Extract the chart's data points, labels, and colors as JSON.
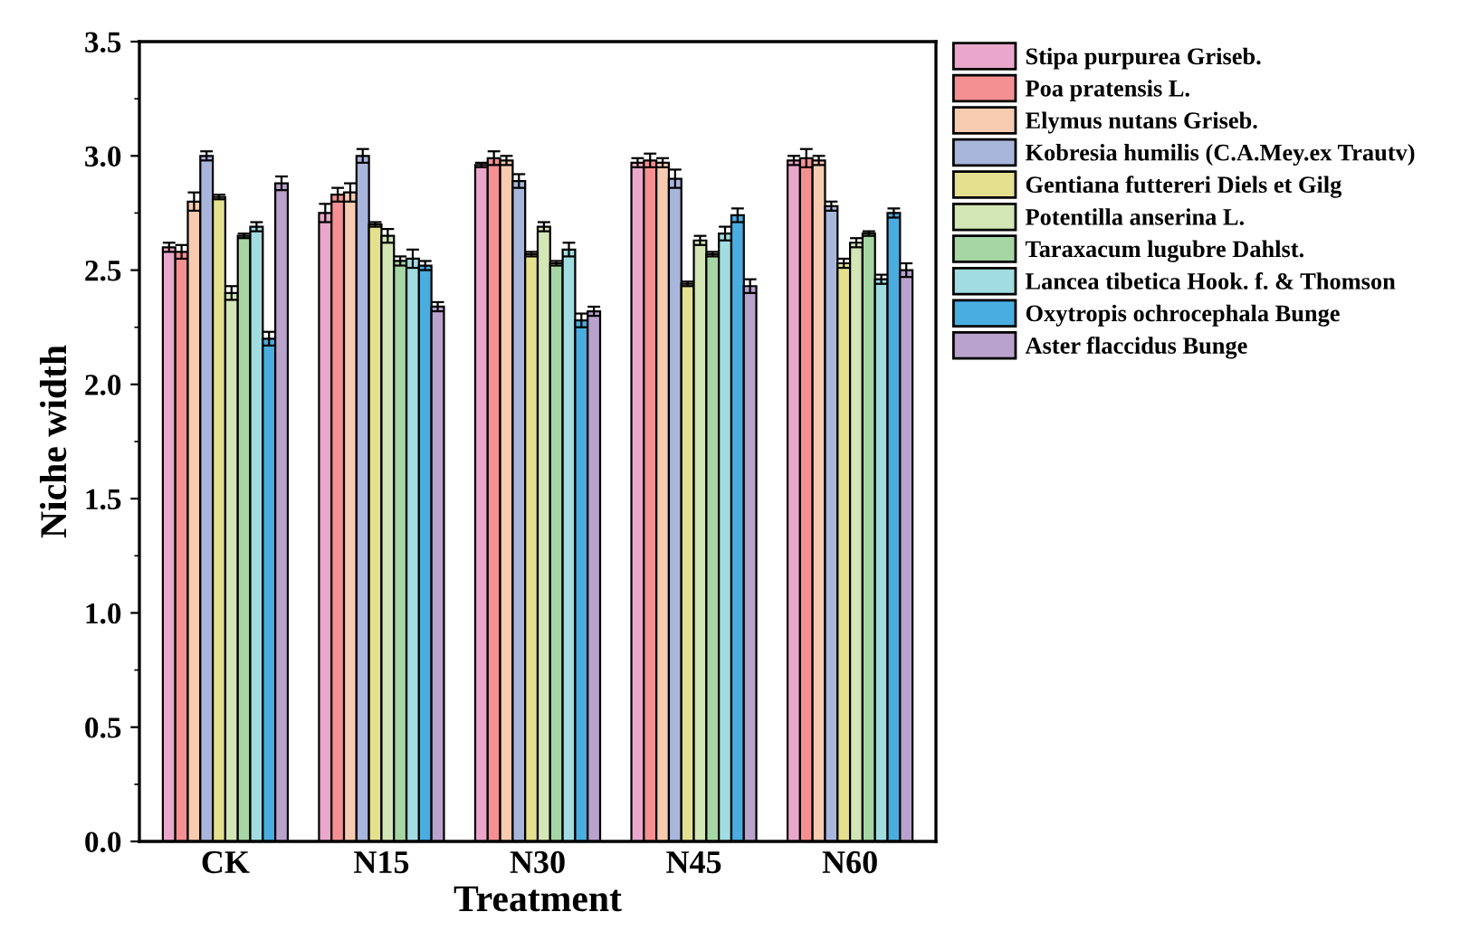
{
  "chart_data": {
    "type": "bar",
    "xlabel": "Treatment",
    "ylabel": "Niche width",
    "categories": [
      "CK",
      "N15",
      "N30",
      "N45",
      "N60"
    ],
    "ylim": [
      0,
      3.5
    ],
    "yticks": [
      {
        "value": 0,
        "label": "0.0"
      },
      0.5,
      {
        "value": 1,
        "label": "1.0"
      },
      1.5,
      {
        "value": 2,
        "label": "2.0"
      },
      2.5,
      {
        "value": 3,
        "label": "3.0"
      },
      3.5
    ],
    "grid": false,
    "legend": "right",
    "series": [
      {
        "name": "Stipa purpurea Griseb.",
        "color": "#eba7cb",
        "values": [
          2.6,
          2.75,
          2.96,
          2.97,
          2.98
        ],
        "errors": [
          0.02,
          0.04,
          0.01,
          0.02,
          0.02
        ]
      },
      {
        "name": "Poa pratensis L.",
        "color": "#f59092",
        "values": [
          2.58,
          2.83,
          2.99,
          2.98,
          2.99
        ],
        "errors": [
          0.03,
          0.03,
          0.03,
          0.03,
          0.04
        ]
      },
      {
        "name": "Elymus nutans Griseb.",
        "color": "#f6cbb0",
        "values": [
          2.8,
          2.84,
          2.98,
          2.97,
          2.98
        ],
        "errors": [
          0.04,
          0.04,
          0.02,
          0.02,
          0.02
        ]
      },
      {
        "name": "Kobresia humilis (C.A.Mey.ex Trautv)",
        "color": "#a9b6dc",
        "values": [
          3.0,
          3.0,
          2.89,
          2.9,
          2.78
        ],
        "errors": [
          0.02,
          0.03,
          0.03,
          0.04,
          0.02
        ]
      },
      {
        "name": "Gentiana futtereri Diels et Gilg",
        "color": "#e4e08e",
        "values": [
          2.82,
          2.7,
          2.57,
          2.44,
          2.53
        ],
        "errors": [
          0.01,
          0.01,
          0.01,
          0.01,
          0.02
        ]
      },
      {
        "name": "Potentilla anserina L.",
        "color": "#d3e6b6",
        "values": [
          2.4,
          2.65,
          2.69,
          2.63,
          2.62
        ],
        "errors": [
          0.03,
          0.03,
          0.02,
          0.02,
          0.02
        ]
      },
      {
        "name": "Taraxacum lugubre Dahlst.",
        "color": "#a6d6a3",
        "values": [
          2.65,
          2.54,
          2.53,
          2.57,
          2.66
        ],
        "errors": [
          0.01,
          0.02,
          0.01,
          0.01,
          0.01
        ]
      },
      {
        "name": "Lancea tibetica Hook. f. & Thomson",
        "color": "#a1dde0",
        "values": [
          2.69,
          2.55,
          2.59,
          2.66,
          2.46
        ],
        "errors": [
          0.02,
          0.04,
          0.03,
          0.03,
          0.02
        ]
      },
      {
        "name": "Oxytropis ochrocephala Bunge",
        "color": "#49ade0",
        "values": [
          2.2,
          2.52,
          2.28,
          2.74,
          2.75
        ],
        "errors": [
          0.03,
          0.02,
          0.03,
          0.03,
          0.02
        ]
      },
      {
        "name": "Aster flaccidus Bunge",
        "color": "#b9a2cc",
        "values": [
          2.88,
          2.34,
          2.32,
          2.43,
          2.5
        ],
        "errors": [
          0.03,
          0.02,
          0.02,
          0.03,
          0.03
        ]
      }
    ]
  }
}
